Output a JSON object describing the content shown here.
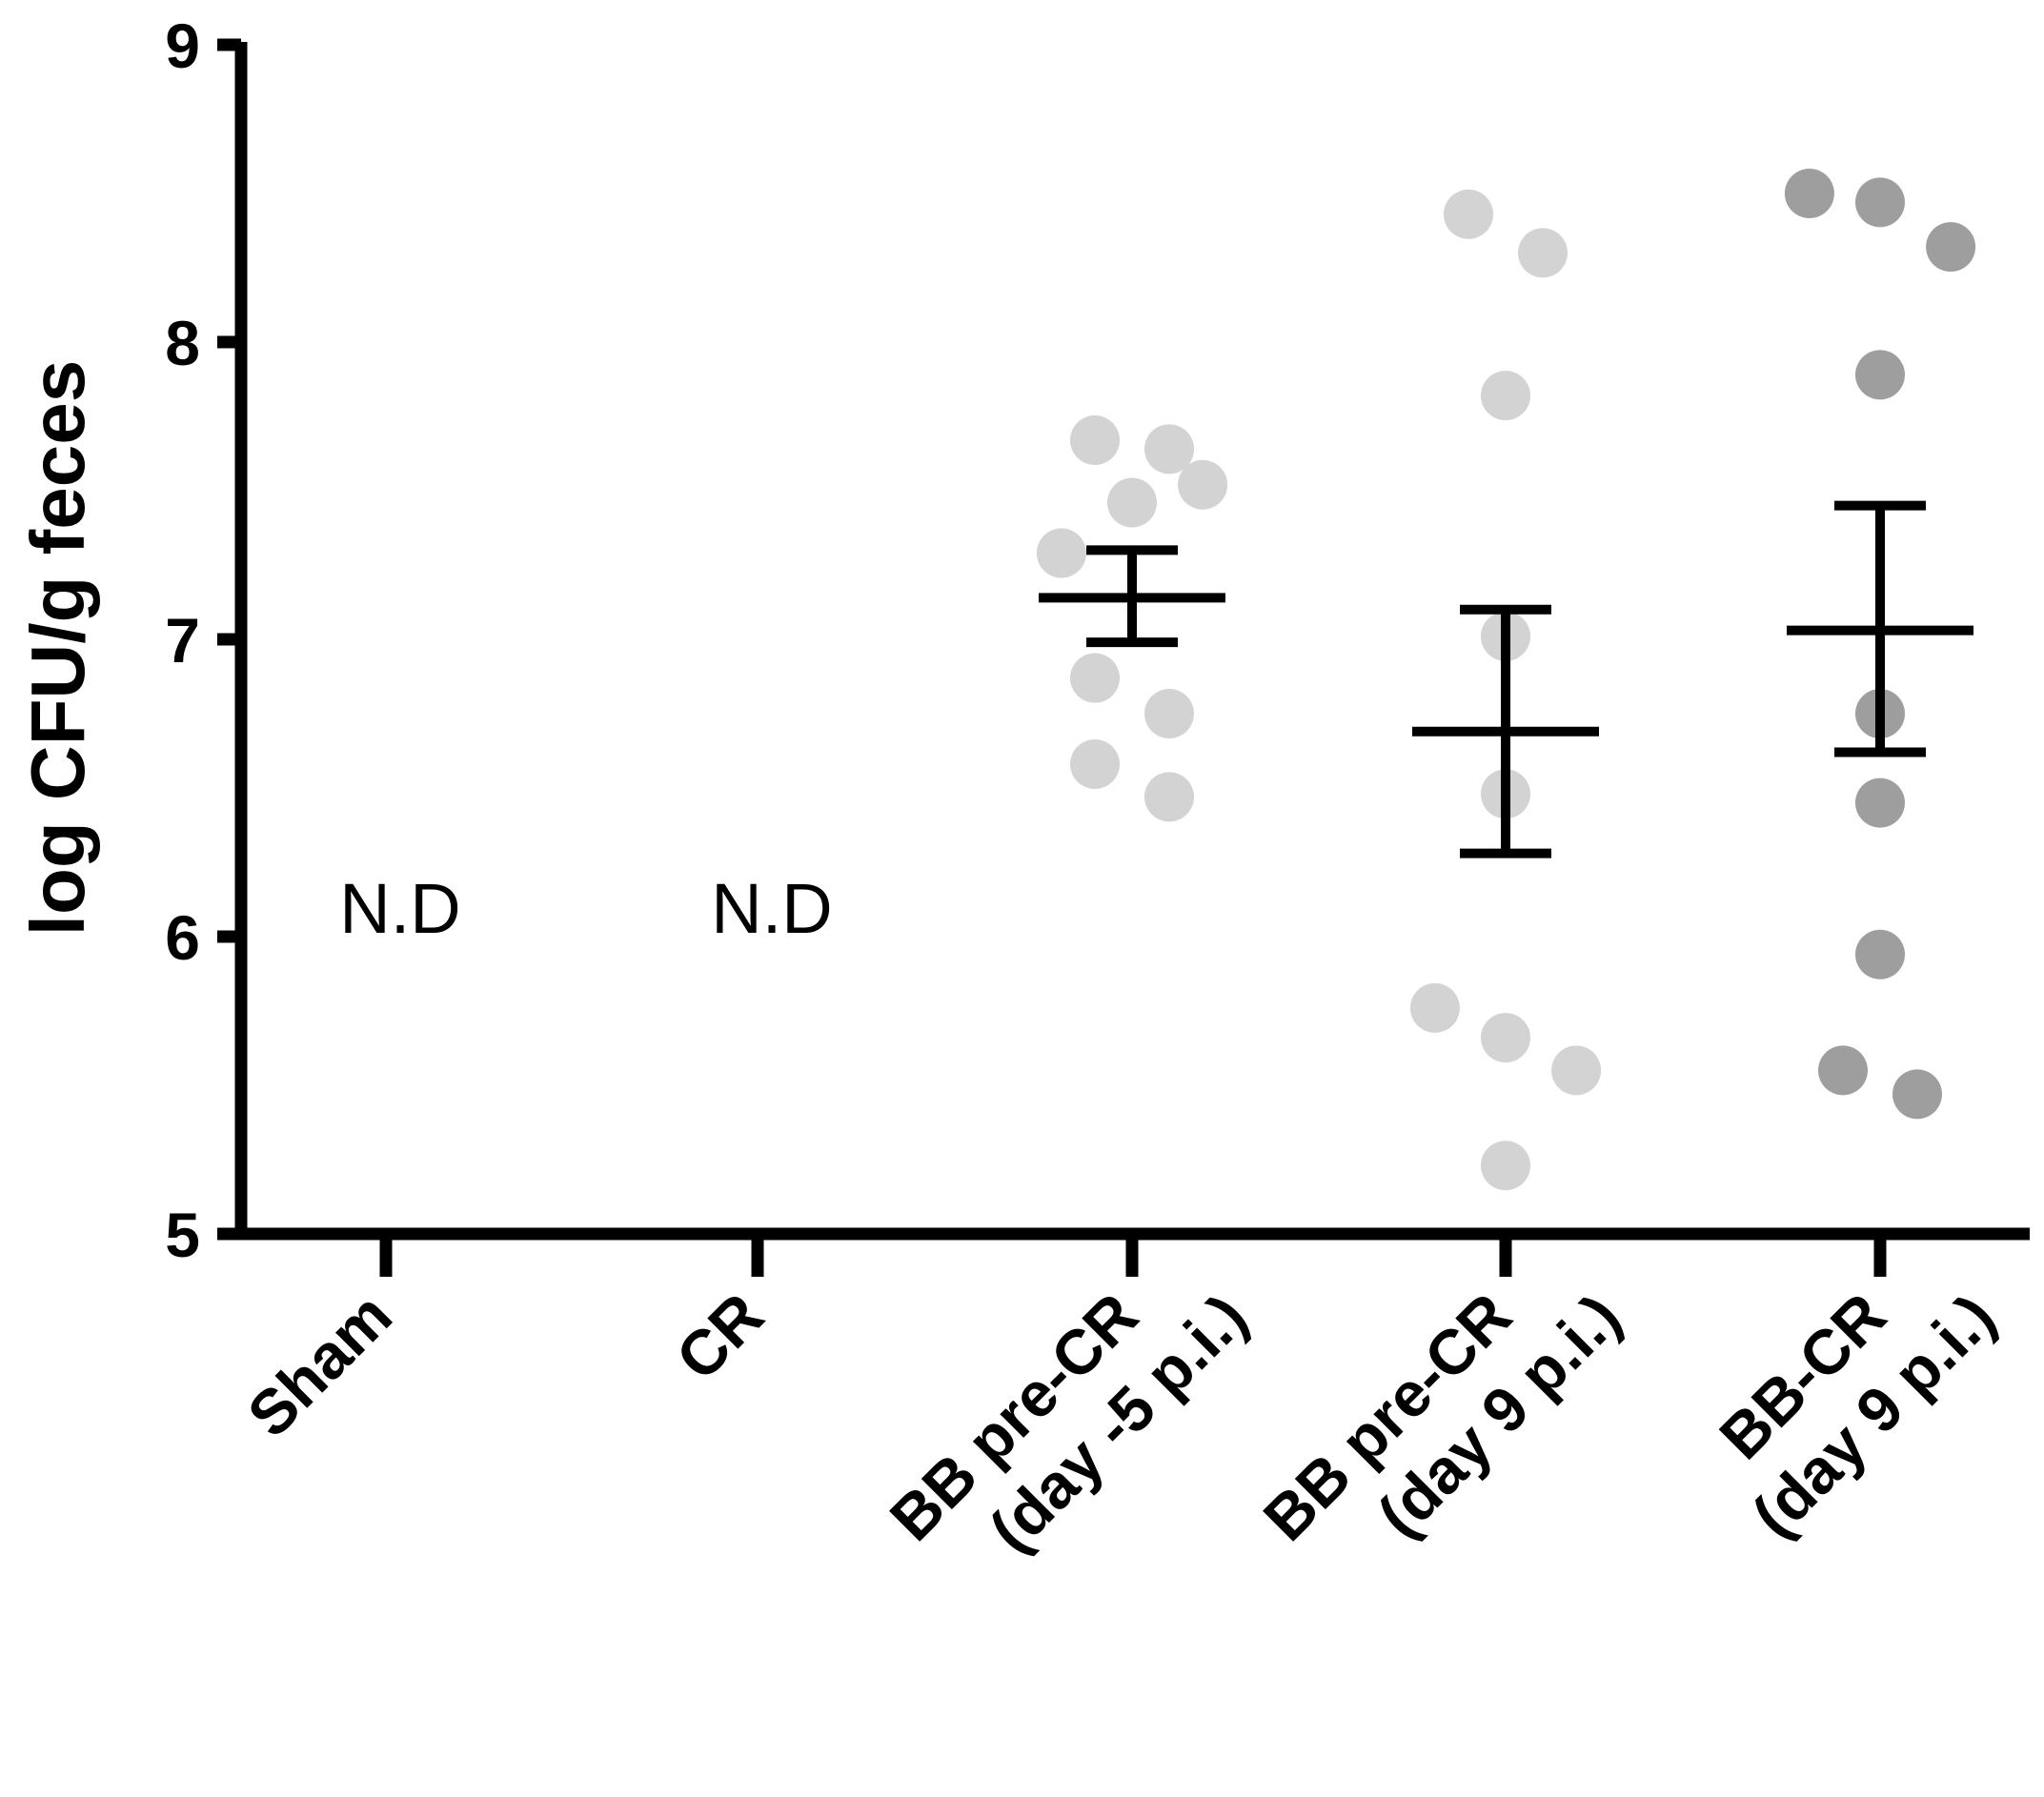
{
  "chart_data": {
    "type": "scatter",
    "ylabel": "log CFU/g feces",
    "ylim": [
      5,
      9
    ],
    "yticks": [
      "5",
      "6",
      "7",
      "8",
      "9"
    ],
    "categories": [
      {
        "line1": "Sham",
        "line2": ""
      },
      {
        "line1": "CR",
        "line2": ""
      },
      {
        "line1": "BB pre-CR",
        "line2": "(day -5 p.i.)"
      },
      {
        "line1": "BB pre-CR",
        "line2": "(day 9 p.i.)"
      },
      {
        "line1": "BB-CR",
        "line2": "(day 9 p.i.)"
      }
    ],
    "annotations": [
      {
        "category_index": 0,
        "text": "N.D",
        "y": 6.1
      },
      {
        "category_index": 1,
        "text": "N.D",
        "y": 6.1
      }
    ],
    "groups": [
      {
        "category_index": 0,
        "points": [],
        "mean": null,
        "sem": null
      },
      {
        "category_index": 1,
        "points": [],
        "mean": null,
        "sem": null
      },
      {
        "category_index": 2,
        "color": "#d3d3d3",
        "points": [
          {
            "offset": -0.1,
            "y": 7.67
          },
          {
            "offset": 0.1,
            "y": 7.64
          },
          {
            "offset": 0.0,
            "y": 7.46
          },
          {
            "offset": 0.19,
            "y": 7.52
          },
          {
            "offset": -0.19,
            "y": 7.29
          },
          {
            "offset": -0.1,
            "y": 6.87
          },
          {
            "offset": 0.1,
            "y": 6.75
          },
          {
            "offset": -0.1,
            "y": 6.58
          },
          {
            "offset": 0.1,
            "y": 6.47
          }
        ],
        "mean": 7.14,
        "sem_low": 6.99,
        "sem_high": 7.3
      },
      {
        "category_index": 3,
        "color": "#d3d3d3",
        "points": [
          {
            "offset": -0.1,
            "y": 8.43
          },
          {
            "offset": 0.1,
            "y": 8.3
          },
          {
            "offset": 0.0,
            "y": 7.82
          },
          {
            "offset": 0.0,
            "y": 7.01
          },
          {
            "offset": 0.0,
            "y": 6.48
          },
          {
            "offset": -0.19,
            "y": 5.76
          },
          {
            "offset": 0.0,
            "y": 5.66
          },
          {
            "offset": 0.19,
            "y": 5.55
          },
          {
            "offset": 0.0,
            "y": 5.23
          }
        ],
        "mean": 6.69,
        "sem_low": 6.28,
        "sem_high": 7.1
      },
      {
        "category_index": 4,
        "color": "#9e9e9e",
        "points": [
          {
            "offset": -0.19,
            "y": 8.5
          },
          {
            "offset": 0.0,
            "y": 8.47
          },
          {
            "offset": 0.19,
            "y": 8.32
          },
          {
            "offset": 0.0,
            "y": 7.89
          },
          {
            "offset": 0.0,
            "y": 6.75
          },
          {
            "offset": 0.0,
            "y": 6.45
          },
          {
            "offset": 0.0,
            "y": 5.94
          },
          {
            "offset": -0.1,
            "y": 5.55
          },
          {
            "offset": 0.1,
            "y": 5.47
          }
        ],
        "mean": 7.03,
        "sem_low": 6.62,
        "sem_high": 7.45
      }
    ]
  }
}
